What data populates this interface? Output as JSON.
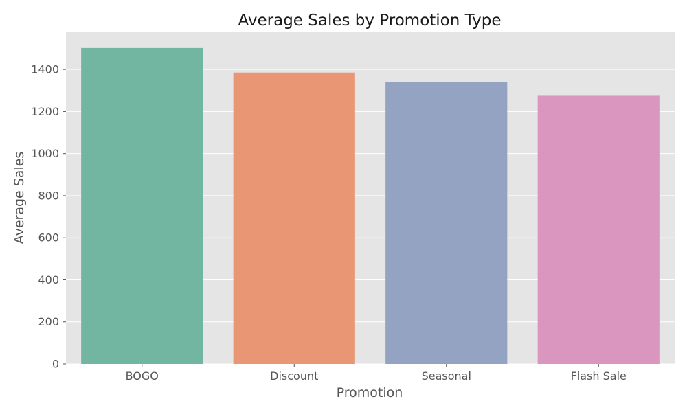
{
  "chart_data": {
    "type": "bar",
    "title": "Average Sales by Promotion Type",
    "xlabel": "Promotion",
    "ylabel": "Average Sales",
    "categories": [
      "BOGO",
      "Discount",
      "Seasonal",
      "Flash Sale"
    ],
    "values": [
      1502,
      1385,
      1340,
      1275
    ],
    "ylim": [
      0,
      1580
    ],
    "yticks": [
      0,
      200,
      400,
      600,
      800,
      1000,
      1200,
      1400
    ],
    "grid": true,
    "colors": {
      "bars": [
        "#72b6a1",
        "#e99675",
        "#95a3c3",
        "#db96c0"
      ],
      "plot_background": "#e5e5e5",
      "grid": "#ffffff",
      "tick": "#555555",
      "text": "#555555",
      "title": "#1a1a1a"
    }
  }
}
